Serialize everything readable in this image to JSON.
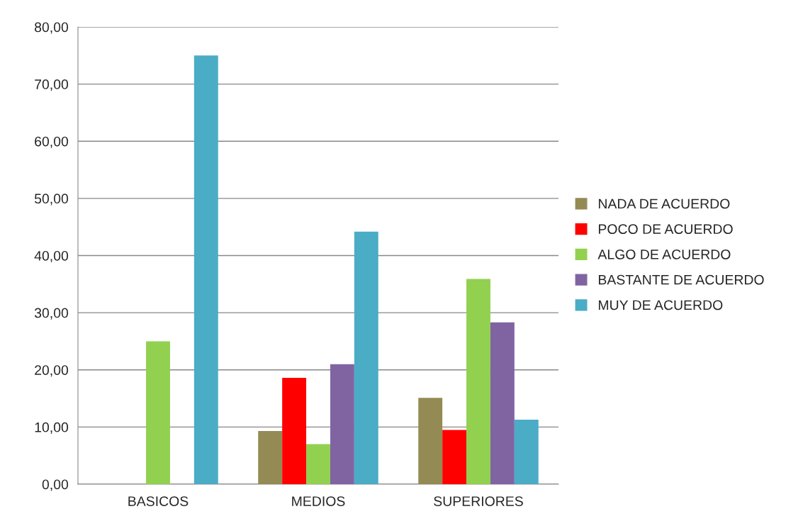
{
  "chart_data": {
    "type": "bar",
    "categories": [
      "BASICOS",
      "MEDIOS",
      "SUPERIORES"
    ],
    "series": [
      {
        "name": "NADA DE ACUERDO",
        "color": "#948a54",
        "values": [
          0,
          9.3,
          15.1
        ]
      },
      {
        "name": "POCO DE ACUERDO",
        "color": "#ff0000",
        "values": [
          0,
          18.6,
          9.5
        ]
      },
      {
        "name": "ALGO DE ACUERDO",
        "color": "#92d050",
        "values": [
          25.0,
          7.0,
          35.9
        ]
      },
      {
        "name": "BASTANTE DE ACUERDO",
        "color": "#8064a2",
        "values": [
          0,
          21.0,
          28.3
        ]
      },
      {
        "name": "MUY DE ACUERDO",
        "color": "#4bacc6",
        "values": [
          75.0,
          44.2,
          11.3
        ]
      }
    ],
    "ylim": [
      0,
      80
    ],
    "yticks": [
      {
        "value": 0,
        "label": "0,00"
      },
      {
        "value": 10,
        "label": "10,00"
      },
      {
        "value": 20,
        "label": "20,00"
      },
      {
        "value": 30,
        "label": "30,00"
      },
      {
        "value": 40,
        "label": "40,00"
      },
      {
        "value": 50,
        "label": "50,00"
      },
      {
        "value": 60,
        "label": "60,00"
      },
      {
        "value": 70,
        "label": "70,00"
      },
      {
        "value": 80,
        "label": "80,00"
      }
    ],
    "grid": "y",
    "legend": "right"
  }
}
